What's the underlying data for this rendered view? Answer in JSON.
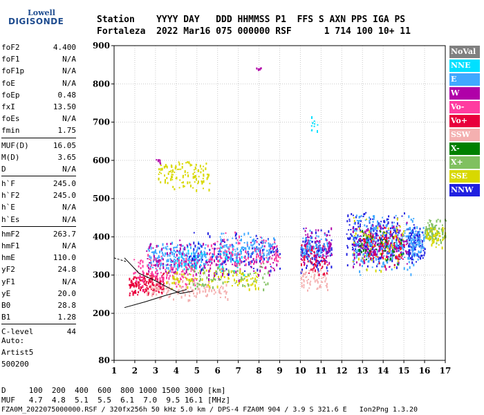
{
  "logo": {
    "line1": "Lowell",
    "line2": "DIGISONDE"
  },
  "header": {
    "line1": "Station    YYYY DAY   DDD HHMMSS P1  FFS S AXN PPS IGA PS",
    "line2": "Fortaleza  2022 Mar16 075 000000 RSF      1 714 100 10+ 11"
  },
  "params": {
    "group1": [
      {
        "name": "foF2",
        "value": "4.400"
      },
      {
        "name": "foF1",
        "value": "N/A"
      },
      {
        "name": "foF1p",
        "value": "N/A"
      },
      {
        "name": "foE",
        "value": "N/A"
      },
      {
        "name": "foEp",
        "value": "0.48"
      },
      {
        "name": "fxI",
        "value": "13.50"
      },
      {
        "name": "foEs",
        "value": "N/A"
      },
      {
        "name": "fmin",
        "value": "1.75"
      }
    ],
    "group2": [
      {
        "name": "MUF(D)",
        "value": "16.05"
      },
      {
        "name": "M(D)",
        "value": "3.65"
      },
      {
        "name": "D",
        "value": "N/A"
      }
    ],
    "group3": [
      {
        "name": "h`F",
        "value": "245.0"
      },
      {
        "name": "h`F2",
        "value": "245.0"
      },
      {
        "name": "h`E",
        "value": "N/A"
      },
      {
        "name": "h`Es",
        "value": "N/A"
      }
    ],
    "group4": [
      {
        "name": "hmF2",
        "value": "263.7"
      },
      {
        "name": "hmF1",
        "value": "N/A"
      },
      {
        "name": "hmE",
        "value": "110.0"
      },
      {
        "name": "yF2",
        "value": "24.8"
      },
      {
        "name": "yF1",
        "value": "N/A"
      },
      {
        "name": "yE",
        "value": "20.0"
      },
      {
        "name": "B0",
        "value": "28.8"
      },
      {
        "name": "B1",
        "value": "1.28"
      }
    ],
    "group5": [
      {
        "name": "C-level",
        "value": "44"
      }
    ]
  },
  "auto": {
    "line1": "Auto:",
    "line2": "Artist5",
    "line3": "500200"
  },
  "legend": [
    {
      "label": "NoVal",
      "color": "#808080"
    },
    {
      "label": "NNE",
      "color": "#00e0ff"
    },
    {
      "label": "E",
      "color": "#40a8ff"
    },
    {
      "label": "W",
      "color": "#b000a8"
    },
    {
      "label": "Vo-",
      "color": "#ff3ca0"
    },
    {
      "label": "Vo+",
      "color": "#e8003c"
    },
    {
      "label": "SSW",
      "color": "#f4b0b0"
    },
    {
      "label": "X-",
      "color": "#008000"
    },
    {
      "label": "X+",
      "color": "#80c060"
    },
    {
      "label": "SSE",
      "color": "#d8d800"
    },
    {
      "label": "NNW",
      "color": "#2020e0"
    }
  ],
  "footer": {
    "line1": "D     100  200  400  600  800 1000 1500 3000 [km]",
    "line2": "MUF   4.7  4.8  5.1  5.5  6.1  7.0  9.5 16.1 [MHz]",
    "line3": "FZA0M_2022075000000.RSF / 320fx256h 50 kHz 5.0 km / DPS-4 FZA0M 904 / 3.9 S 321.6 E   Ion2Png 1.3.20"
  },
  "chart_data": {
    "type": "scatter",
    "xlim": [
      1,
      17
    ],
    "ylim": [
      80,
      900
    ],
    "xticks": [
      1,
      2,
      3,
      4,
      5,
      6,
      7,
      8,
      9,
      10,
      11,
      12,
      13,
      14,
      15,
      16,
      17
    ],
    "yticks": [
      80,
      200,
      300,
      400,
      500,
      600,
      700,
      800,
      900
    ],
    "grid": true,
    "legend_position": "right",
    "clusters": [
      {
        "series": "E",
        "x": [
          2.6,
          5.4
        ],
        "y": [
          310,
          390
        ],
        "n": 220
      },
      {
        "series": "Vo+",
        "x": [
          1.7,
          3.4
        ],
        "y": [
          245,
          310
        ],
        "n": 160
      },
      {
        "series": "Vo-",
        "x": [
          1.8,
          5.0
        ],
        "y": [
          260,
          360
        ],
        "n": 140
      },
      {
        "series": "SSW",
        "x": [
          2.5,
          6.5
        ],
        "y": [
          235,
          290
        ],
        "n": 120
      },
      {
        "series": "SSE",
        "x": [
          3.5,
          8.0
        ],
        "y": [
          260,
          320
        ],
        "n": 110
      },
      {
        "series": "W",
        "x": [
          2.5,
          9.0
        ],
        "y": [
          280,
          400
        ],
        "n": 160
      },
      {
        "series": "NNW",
        "x": [
          4.5,
          9.0
        ],
        "y": [
          290,
          420
        ],
        "n": 120
      },
      {
        "series": "X+",
        "x": [
          4.5,
          8.5
        ],
        "y": [
          260,
          340
        ],
        "n": 70
      },
      {
        "series": "NNE",
        "x": [
          4.0,
          7.5
        ],
        "y": [
          300,
          380
        ],
        "n": 60
      },
      {
        "series": "Vo-",
        "x": [
          5.5,
          9.0
        ],
        "y": [
          300,
          420
        ],
        "n": 120
      },
      {
        "series": "E",
        "x": [
          6.0,
          8.8
        ],
        "y": [
          330,
          420
        ],
        "n": 110
      },
      {
        "series": "NNW",
        "x": [
          10.0,
          11.5
        ],
        "y": [
          300,
          430
        ],
        "n": 110
      },
      {
        "series": "W",
        "x": [
          10.0,
          11.5
        ],
        "y": [
          320,
          430
        ],
        "n": 80
      },
      {
        "series": "SSW",
        "x": [
          10.0,
          11.3
        ],
        "y": [
          260,
          320
        ],
        "n": 60
      },
      {
        "series": "Vo+",
        "x": [
          10.0,
          11.3
        ],
        "y": [
          290,
          390
        ],
        "n": 60
      },
      {
        "series": "E",
        "x": [
          10.0,
          11.3
        ],
        "y": [
          330,
          420
        ],
        "n": 60
      },
      {
        "series": "NNW",
        "x": [
          12.2,
          15.0
        ],
        "y": [
          320,
          470
        ],
        "n": 260
      },
      {
        "series": "E",
        "x": [
          12.5,
          15.5
        ],
        "y": [
          300,
          470
        ],
        "n": 260
      },
      {
        "series": "W",
        "x": [
          12.5,
          15.2
        ],
        "y": [
          310,
          460
        ],
        "n": 140
      },
      {
        "series": "SSE",
        "x": [
          12.5,
          15.0
        ],
        "y": [
          300,
          460
        ],
        "n": 80
      },
      {
        "series": "X-",
        "x": [
          12.8,
          15.0
        ],
        "y": [
          320,
          430
        ],
        "n": 50
      },
      {
        "series": "Vo+",
        "x": [
          13.0,
          15.0
        ],
        "y": [
          320,
          440
        ],
        "n": 60
      },
      {
        "series": "NNW",
        "x": [
          15.2,
          16.0
        ],
        "y": [
          320,
          440
        ],
        "n": 90
      },
      {
        "series": "E",
        "x": [
          15.2,
          16.0
        ],
        "y": [
          330,
          440
        ],
        "n": 70
      },
      {
        "series": "X+",
        "x": [
          16.0,
          17.0
        ],
        "y": [
          380,
          450
        ],
        "n": 90
      },
      {
        "series": "SSE",
        "x": [
          16.0,
          17.0
        ],
        "y": [
          370,
          440
        ],
        "n": 50
      },
      {
        "series": "SSE",
        "x": [
          3.1,
          5.6
        ],
        "y": [
          520,
          610
        ],
        "n": 110
      },
      {
        "series": "W",
        "x": [
          7.8,
          8.1
        ],
        "y": [
          838,
          845
        ],
        "n": 6
      },
      {
        "series": "NNE",
        "x": [
          10.5,
          10.9
        ],
        "y": [
          660,
          720
        ],
        "n": 10
      },
      {
        "series": "W",
        "x": [
          2.9,
          3.3
        ],
        "y": [
          590,
          610
        ],
        "n": 6
      }
    ],
    "profile_lines": [
      {
        "name": "trace-lower",
        "points": [
          [
            1.5,
            215
          ],
          [
            2.5,
            230
          ],
          [
            3.5,
            247
          ],
          [
            4.5,
            262
          ]
        ]
      },
      {
        "name": "trace-upper",
        "points": [
          [
            1.5,
            345
          ],
          [
            2.2,
            305
          ],
          [
            3.0,
            285
          ],
          [
            3.7,
            265
          ],
          [
            4.2,
            252
          ],
          [
            4.8,
            258
          ]
        ]
      }
    ]
  }
}
